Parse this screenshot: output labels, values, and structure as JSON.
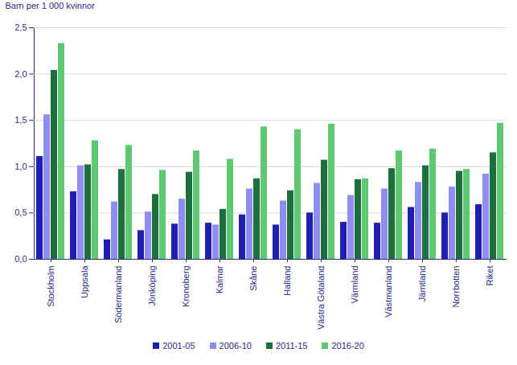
{
  "chart_data": {
    "type": "bar",
    "y_label": "Barn per 1 000 kvinnor",
    "categories": [
      "Stockholm",
      "Uppsala",
      "Södermanland",
      "Jönköping",
      "Kronoberg",
      "Kalmar",
      "Skåne",
      "Halland",
      "Västra Götaland",
      "Värmland",
      "Västmanland",
      "Jämtland",
      "Norrbotten",
      "Riket"
    ],
    "series": [
      {
        "name": "2001-05",
        "color": "#2020b0",
        "values": [
          1.11,
          0.73,
          0.21,
          0.31,
          0.38,
          0.39,
          0.48,
          0.37,
          0.5,
          0.4,
          0.39,
          0.56,
          0.5,
          0.59
        ]
      },
      {
        "name": "2006-10",
        "color": "#8e8ef0",
        "values": [
          1.56,
          1.01,
          0.62,
          0.51,
          0.65,
          0.37,
          0.76,
          0.63,
          0.82,
          0.69,
          0.76,
          0.83,
          0.78,
          0.92
        ]
      },
      {
        "name": "2011-15",
        "color": "#1f6e3d",
        "values": [
          2.04,
          1.02,
          0.97,
          0.7,
          0.94,
          0.54,
          0.87,
          0.74,
          1.07,
          0.86,
          0.98,
          1.01,
          0.95,
          1.15
        ]
      },
      {
        "name": "2016-20",
        "color": "#5ec872",
        "values": [
          2.33,
          1.28,
          1.23,
          0.96,
          1.17,
          1.08,
          1.43,
          1.4,
          1.46,
          0.87,
          1.17,
          1.19,
          0.97,
          1.47
        ]
      }
    ],
    "ylim": [
      0,
      2.5
    ],
    "yticks": [
      {
        "value": 0,
        "label": "0,0"
      },
      {
        "value": 0.5,
        "label": "0,5"
      },
      {
        "value": 1,
        "label": "1,0"
      },
      {
        "value": 1.5,
        "label": "1,5"
      },
      {
        "value": 2,
        "label": "2,0"
      },
      {
        "value": 2.5,
        "label": "2,5"
      }
    ],
    "grid": true,
    "legend": "bottom"
  }
}
